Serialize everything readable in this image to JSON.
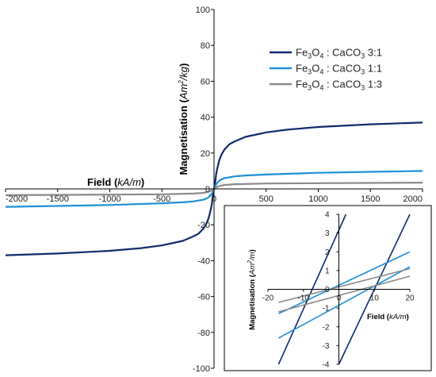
{
  "chart_data": [
    {
      "type": "line",
      "xlabel": {
        "main": "Field",
        "unit": "kA/m"
      },
      "ylabel": {
        "main": "Magnetisation",
        "unit_base": "Am",
        "unit_sup": "2",
        "unit_rest": "/kg"
      },
      "xlim": [
        -2000,
        2000
      ],
      "ylim": [
        -100,
        100
      ],
      "xticks": [
        -2000,
        -1500,
        -1000,
        -500,
        0,
        500,
        1000,
        1500,
        2000
      ],
      "yticks": [
        -100,
        -80,
        -60,
        -40,
        -20,
        0,
        20,
        40,
        60,
        80,
        100
      ],
      "grid": false,
      "legend_position": "top-right",
      "series": [
        {
          "name": "Fe3O4 : CaCO3 3:1",
          "legend": {
            "a": "Fe",
            "b": "3",
            "c": "O",
            "d": "4",
            "e": " : CaCO",
            "f": "3",
            "g": " 3:1"
          },
          "color": "#0d2b6e",
          "x": [
            -2000,
            -1500,
            -1000,
            -700,
            -500,
            -300,
            -200,
            -150,
            -100,
            -70,
            -50,
            -30,
            -20,
            -10,
            0,
            10,
            20,
            30,
            50,
            70,
            100,
            150,
            200,
            300,
            500,
            700,
            1000,
            1500,
            2000
          ],
          "y": [
            -37,
            -36,
            -34.5,
            -33,
            -31.5,
            -29,
            -26.5,
            -25,
            -22,
            -19,
            -16,
            -11,
            -8,
            -3,
            0,
            3,
            8,
            11,
            16,
            19,
            22,
            25,
            26.5,
            29,
            31.5,
            33,
            34.5,
            36,
            37
          ]
        },
        {
          "name": "Fe3O4 : CaCO3 1:1",
          "legend": {
            "a": "Fe",
            "b": "3",
            "c": "O",
            "d": "4",
            "e": " : CaCO",
            "f": "3",
            "g": " 1:1"
          },
          "color": "#1f8fd6",
          "x": [
            -2000,
            -1500,
            -1000,
            -500,
            -300,
            -200,
            -100,
            -60,
            -40,
            -20,
            0,
            20,
            40,
            60,
            100,
            200,
            300,
            500,
            1000,
            1500,
            2000
          ],
          "y": [
            -10,
            -9.5,
            -9,
            -8,
            -7.5,
            -7,
            -6,
            -5,
            -4,
            -2.5,
            0,
            2.5,
            4,
            5,
            6,
            7,
            7.5,
            8,
            9,
            9.5,
            10
          ]
        },
        {
          "name": "Fe3O4 : CaCO3 1:3",
          "legend": {
            "a": "Fe",
            "b": "3",
            "c": "O",
            "d": "4",
            "e": " : CaCO",
            "f": "3",
            "g": " 1:3"
          },
          "color": "#8a8a8a",
          "x": [
            -2000,
            -1000,
            -500,
            -200,
            -100,
            -50,
            -20,
            0,
            20,
            50,
            100,
            200,
            500,
            1000,
            2000
          ],
          "y": [
            -3.5,
            -3.2,
            -3,
            -2.6,
            -2.2,
            -1.6,
            -0.8,
            0,
            0.8,
            1.6,
            2.2,
            2.6,
            3,
            3.2,
            3.5
          ]
        }
      ]
    },
    {
      "type": "line",
      "inset": true,
      "xlabel": {
        "main": "Field",
        "unit": "kA/m"
      },
      "ylabel": {
        "main": "Magnetisation",
        "unit_base": "Am",
        "unit_sup": "2",
        "unit_rest": "/m"
      },
      "xlim": [
        -20,
        20
      ],
      "ylim": [
        -4,
        4
      ],
      "xticks": [
        -20,
        -10,
        0,
        10,
        20
      ],
      "yticks": [
        -4,
        -3,
        -2,
        -1,
        0,
        1,
        2,
        3,
        4
      ],
      "grid": false,
      "series": [
        {
          "color": "#0d2b6e",
          "x": [
            -17,
            2
          ],
          "y": [
            -4,
            4
          ]
        },
        {
          "color": "#0d2b6e",
          "x": [
            0,
            20
          ],
          "y": [
            -4,
            4
          ]
        },
        {
          "color": "#1f8fd6",
          "x": [
            -17,
            20
          ],
          "y": [
            -1.3,
            2
          ]
        },
        {
          "color": "#1f8fd6",
          "x": [
            -17,
            20
          ],
          "y": [
            -2.6,
            1.2
          ]
        },
        {
          "color": "#8a8a8a",
          "x": [
            -17,
            20
          ],
          "y": [
            -0.7,
            1.1
          ]
        },
        {
          "color": "#8a8a8a",
          "x": [
            -17,
            20
          ],
          "y": [
            -1.2,
            0.7
          ]
        }
      ]
    }
  ]
}
